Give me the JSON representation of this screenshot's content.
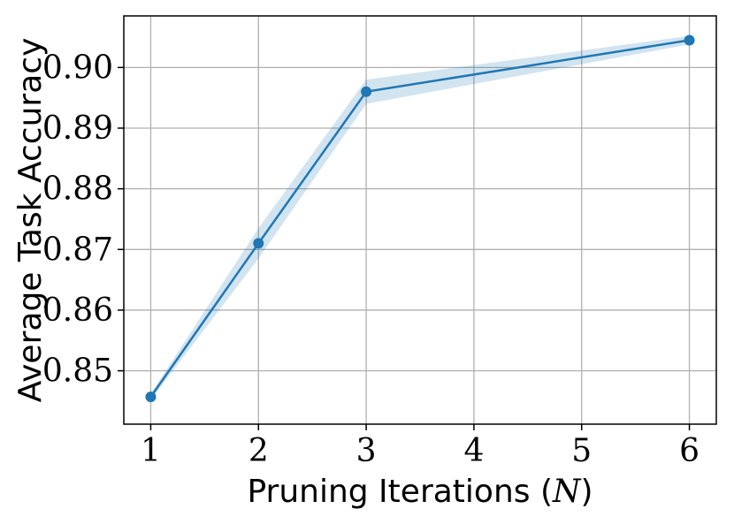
{
  "chart_data": {
    "type": "line",
    "xlabel_text": "Pruning Iterations (",
    "xlabel_math": "N",
    "xlabel_close": ")",
    "ylabel": "Average Task Accuracy",
    "x_ticks": [
      "1",
      "2",
      "3",
      "4",
      "5",
      "6"
    ],
    "y_ticks": [
      "0.85",
      "0.86",
      "0.87",
      "0.88",
      "0.89",
      "0.90"
    ],
    "xlim": [
      0.75,
      6.25
    ],
    "ylim": [
      0.8412,
      0.9085
    ],
    "grid": true,
    "series": [
      {
        "color": "#1f77b4",
        "band_color": "#1f77b4",
        "x": [
          1,
          2,
          3,
          6
        ],
        "y": [
          0.8457,
          0.871,
          0.896,
          0.9045
        ],
        "lower": [
          0.8452,
          0.8685,
          0.894,
          0.9038
        ],
        "upper": [
          0.8462,
          0.8735,
          0.898,
          0.9052
        ]
      }
    ]
  }
}
